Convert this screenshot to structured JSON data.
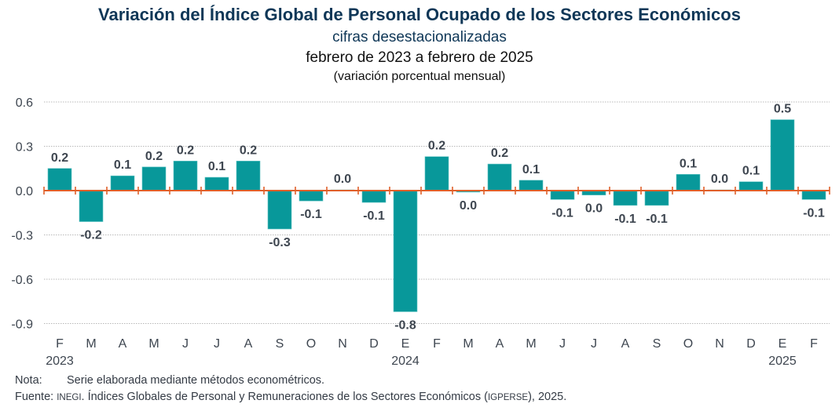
{
  "chart_data": {
    "type": "bar",
    "title": "Variación del Índice Global de Personal Ocupado de los Sectores Económicos",
    "subtitle": "cifras desestacionalizadas",
    "period": "febrero de 2023 a febrero de 2025",
    "units": "(variación porcentual mensual)",
    "xlabel": "",
    "ylabel": "",
    "ylim": [
      -0.9,
      0.6
    ],
    "yticks": [
      0.6,
      0.3,
      0.0,
      -0.3,
      -0.6,
      -0.9
    ],
    "ytick_labels": [
      "0.6",
      "0.3",
      "0.0",
      "-0.3",
      "-0.6",
      "-0.9"
    ],
    "grid": true,
    "legend": "none",
    "categories": [
      "F",
      "M",
      "A",
      "M",
      "J",
      "J",
      "A",
      "S",
      "O",
      "N",
      "D",
      "E",
      "F",
      "M",
      "A",
      "M",
      "J",
      "J",
      "A",
      "S",
      "O",
      "N",
      "D",
      "E",
      "F"
    ],
    "years": [
      {
        "label": "2023",
        "index": 0
      },
      {
        "label": "2024",
        "index": 11
      },
      {
        "label": "2025",
        "index": 23
      }
    ],
    "values": [
      0.15,
      -0.21,
      0.1,
      0.16,
      0.2,
      0.09,
      0.2,
      -0.26,
      -0.07,
      0.005,
      -0.08,
      -0.82,
      0.23,
      -0.01,
      0.18,
      0.07,
      -0.06,
      -0.03,
      -0.1,
      -0.1,
      0.11,
      0.005,
      0.06,
      0.48,
      -0.06
    ],
    "data_labels": [
      "0.2",
      "-0.2",
      "0.1",
      "0.2",
      "0.2",
      "0.1",
      "0.2",
      "-0.3",
      "-0.1",
      "0.0",
      "-0.1",
      "-0.8",
      "0.2",
      "0.0",
      "0.2",
      "0.1",
      "-0.1",
      "0.0",
      "-0.1",
      "-0.1",
      "0.1",
      "0.0",
      "0.1",
      "0.5",
      "-0.1"
    ],
    "colors": {
      "bar": "#08989a",
      "axis": "#e0602a",
      "grid": "#b8b8b8",
      "title": "#0f3757",
      "label": "#3e4650"
    }
  },
  "notes": {
    "nota_label": "Nota:",
    "nota_text": "Serie elaborada mediante métodos econométricos.",
    "fuente_label": "Fuente:",
    "fuente_org": "INEGI",
    "fuente_text_1": ". Índices Globales de Personal y Remuneraciones de los Sectores Económicos (",
    "fuente_abbr": "IGPERSE",
    "fuente_text_2": "), 2025."
  }
}
